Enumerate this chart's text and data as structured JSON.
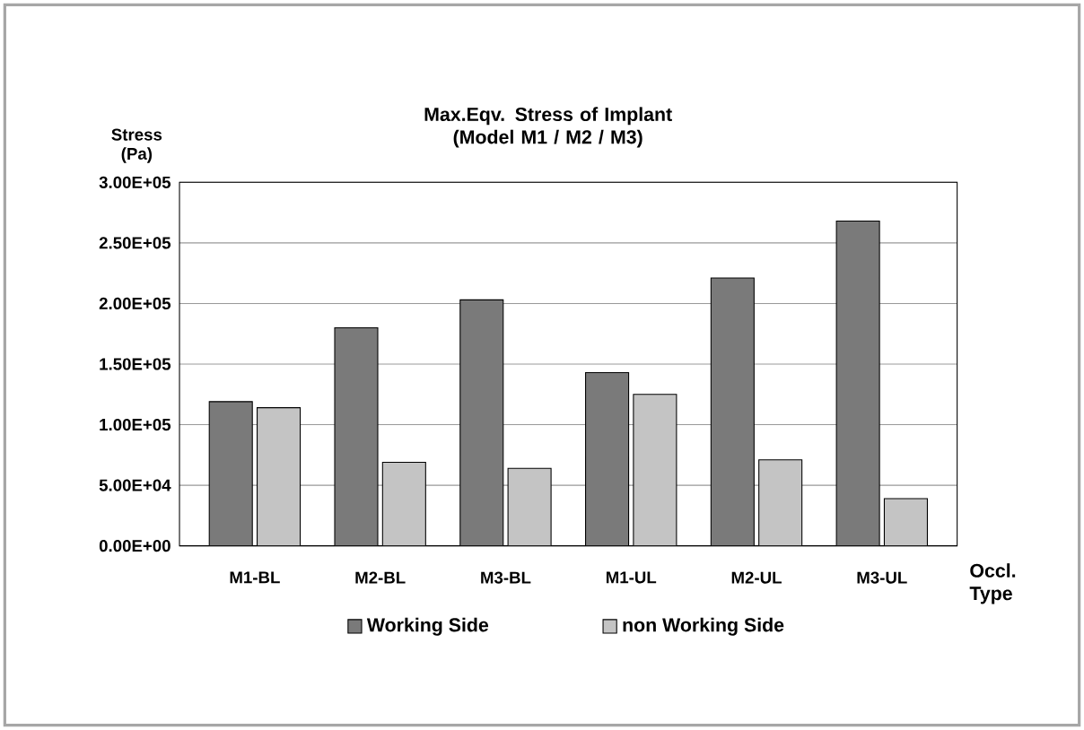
{
  "chart_data": {
    "type": "bar",
    "title": "Max.Eqv. Stress of Implant\n(Model M1 / M2 / M3)",
    "xlabel": "Occl.\nType",
    "ylabel": "Stress\n(Pa)",
    "categories": [
      "M1-BL",
      "M2-BL",
      "M3-BL",
      "M1-UL",
      "M2-UL",
      "M3-UL"
    ],
    "series": [
      {
        "name": "Working Side",
        "color": "#7a7a7a",
        "values": [
          119000,
          180000,
          203000,
          143000,
          221000,
          268000
        ]
      },
      {
        "name": "non Working Side",
        "color": "#c4c4c4",
        "values": [
          114000,
          69000,
          64000,
          125000,
          71000,
          39000
        ]
      }
    ],
    "ylim": [
      0,
      300000
    ],
    "yticks": [
      {
        "value": 0,
        "label": "0.00E+00"
      },
      {
        "value": 50000,
        "label": "5.00E+04"
      },
      {
        "value": 100000,
        "label": "1.00E+05"
      },
      {
        "value": 150000,
        "label": "1.50E+05"
      },
      {
        "value": 200000,
        "label": "2.00E+05"
      },
      {
        "value": 250000,
        "label": "2.50E+05"
      },
      {
        "value": 300000,
        "label": "3.00E+05"
      }
    ],
    "grid": "y",
    "legend": "bottom"
  }
}
